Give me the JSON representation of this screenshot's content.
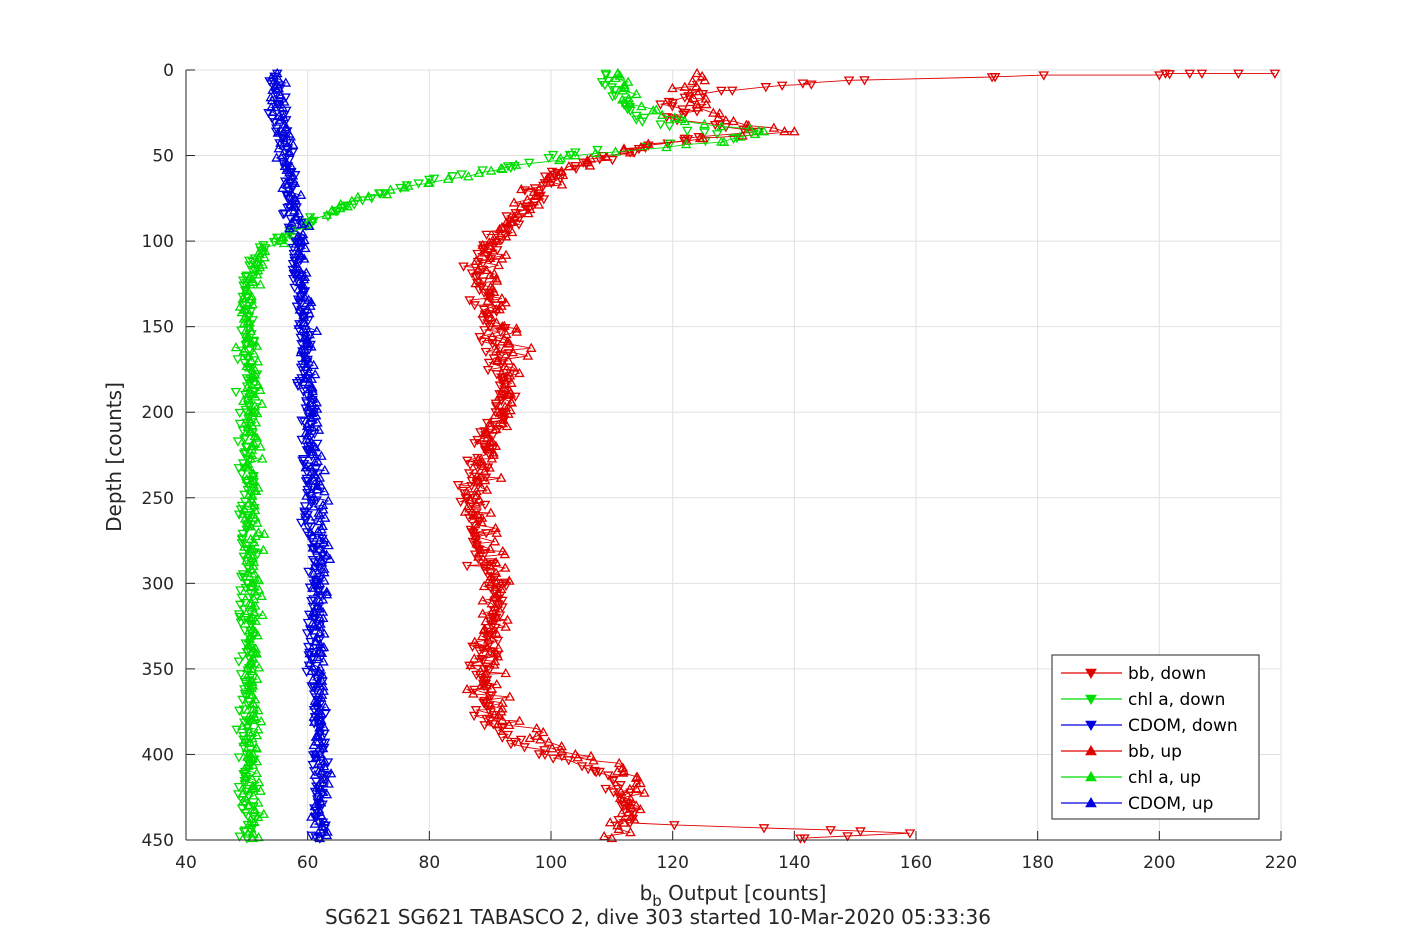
{
  "chart_data": {
    "type": "scatter",
    "xlabel_main": "b",
    "xlabel_sub": "b",
    "xlabel_rest": " Output [counts]",
    "ylabel": "Depth [counts]",
    "caption": "SG621 SG621 TABASCO 2, dive 303 started 10-Mar-2020 05:33:36",
    "xlim": [
      40,
      220
    ],
    "ylim": [
      0,
      450
    ],
    "y_reversed": true,
    "grid": true,
    "legend_position": "bottom-right",
    "x_ticks": [
      40,
      60,
      80,
      100,
      120,
      140,
      160,
      180,
      200,
      220
    ],
    "y_ticks": [
      0,
      50,
      100,
      150,
      200,
      250,
      300,
      350,
      400,
      450
    ],
    "series": [
      {
        "name": "bb, down",
        "color": "#e00000",
        "marker": "down",
        "line": true,
        "profile": [
          [
            2,
            219
          ],
          [
            2,
            213
          ],
          [
            2,
            207
          ],
          [
            2,
            205
          ],
          [
            2,
            201
          ],
          [
            3,
            200
          ],
          [
            3,
            181
          ],
          [
            4,
            173
          ],
          [
            6,
            149
          ],
          [
            9,
            138
          ],
          [
            12,
            128
          ],
          [
            16,
            122
          ],
          [
            20,
            118
          ],
          [
            24,
            124
          ],
          [
            28,
            120
          ],
          [
            32,
            127
          ],
          [
            36,
            134
          ],
          [
            40,
            122
          ],
          [
            44,
            116
          ],
          [
            48,
            113
          ],
          [
            52,
            108
          ],
          [
            56,
            104
          ],
          [
            60,
            101
          ],
          [
            66,
            99
          ],
          [
            72,
            98
          ],
          [
            80,
            96
          ],
          [
            88,
            94
          ],
          [
            96,
            91
          ],
          [
            104,
            89
          ],
          [
            112,
            88
          ],
          [
            120,
            88
          ],
          [
            130,
            89
          ],
          [
            140,
            89
          ],
          [
            150,
            90
          ],
          [
            160,
            91
          ],
          [
            170,
            92
          ],
          [
            180,
            92
          ],
          [
            190,
            92
          ],
          [
            200,
            92
          ],
          [
            210,
            90
          ],
          [
            220,
            89
          ],
          [
            230,
            88
          ],
          [
            240,
            87
          ],
          [
            250,
            86
          ],
          [
            260,
            87
          ],
          [
            270,
            87
          ],
          [
            280,
            88
          ],
          [
            290,
            89
          ],
          [
            300,
            91
          ],
          [
            310,
            92
          ],
          [
            320,
            91
          ],
          [
            330,
            90
          ],
          [
            340,
            90
          ],
          [
            350,
            89
          ],
          [
            360,
            89
          ],
          [
            370,
            89
          ],
          [
            380,
            90
          ],
          [
            390,
            92
          ],
          [
            400,
            99
          ],
          [
            410,
            108
          ],
          [
            420,
            111
          ],
          [
            430,
            112
          ],
          [
            440,
            113
          ],
          [
            446,
            159
          ],
          [
            449,
            141
          ]
        ],
        "scatter": 2.0
      },
      {
        "name": "chl a, down",
        "color": "#00dd00",
        "marker": "down",
        "line": false,
        "profile": [
          [
            2,
            109
          ],
          [
            10,
            110
          ],
          [
            20,
            112
          ],
          [
            30,
            115
          ],
          [
            40,
            130
          ],
          [
            48,
            104
          ],
          [
            56,
            94
          ],
          [
            64,
            80
          ],
          [
            72,
            72
          ],
          [
            80,
            66
          ],
          [
            88,
            61
          ],
          [
            96,
            57
          ],
          [
            104,
            53
          ],
          [
            112,
            51
          ],
          [
            120,
            50
          ],
          [
            140,
            50
          ],
          [
            160,
            50
          ],
          [
            180,
            50
          ],
          [
            200,
            50
          ],
          [
            220,
            50
          ],
          [
            240,
            50
          ],
          [
            260,
            50
          ],
          [
            280,
            50
          ],
          [
            300,
            50
          ],
          [
            320,
            50
          ],
          [
            340,
            50
          ],
          [
            360,
            50
          ],
          [
            380,
            50
          ],
          [
            400,
            50
          ],
          [
            420,
            50
          ],
          [
            449,
            50
          ]
        ],
        "scatter": 1.2
      },
      {
        "name": "CDOM, down",
        "color": "#0000dd",
        "marker": "down",
        "line": false,
        "profile": [
          [
            2,
            55
          ],
          [
            20,
            55
          ],
          [
            40,
            56
          ],
          [
            60,
            57
          ],
          [
            80,
            57
          ],
          [
            100,
            58
          ],
          [
            120,
            58
          ],
          [
            140,
            59
          ],
          [
            160,
            59
          ],
          [
            180,
            59
          ],
          [
            200,
            60
          ],
          [
            220,
            60
          ],
          [
            240,
            60
          ],
          [
            260,
            60
          ],
          [
            280,
            61
          ],
          [
            300,
            61
          ],
          [
            320,
            61
          ],
          [
            340,
            61
          ],
          [
            360,
            61
          ],
          [
            380,
            62
          ],
          [
            400,
            62
          ],
          [
            420,
            62
          ],
          [
            449,
            62
          ]
        ],
        "scatter": 1.2
      },
      {
        "name": "bb, up",
        "color": "#e00000",
        "marker": "up",
        "line": true,
        "profile": [
          [
            2,
            124
          ],
          [
            10,
            122
          ],
          [
            20,
            124
          ],
          [
            30,
            130
          ],
          [
            36,
            140
          ],
          [
            40,
            125
          ],
          [
            46,
            112
          ],
          [
            54,
            106
          ],
          [
            62,
            100
          ],
          [
            70,
            98
          ],
          [
            80,
            95
          ],
          [
            90,
            93
          ],
          [
            100,
            91
          ],
          [
            110,
            90
          ],
          [
            120,
            90
          ],
          [
            130,
            90
          ],
          [
            140,
            91
          ],
          [
            150,
            92
          ],
          [
            160,
            93
          ],
          [
            170,
            93
          ],
          [
            180,
            93
          ],
          [
            190,
            93
          ],
          [
            200,
            92
          ],
          [
            210,
            91
          ],
          [
            220,
            90
          ],
          [
            240,
            88
          ],
          [
            260,
            88
          ],
          [
            280,
            90
          ],
          [
            300,
            91
          ],
          [
            320,
            91
          ],
          [
            340,
            90
          ],
          [
            360,
            89
          ],
          [
            380,
            92
          ],
          [
            400,
            104
          ],
          [
            410,
            112
          ],
          [
            420,
            114
          ],
          [
            430,
            114
          ],
          [
            440,
            112
          ],
          [
            449,
            110
          ]
        ],
        "scatter": 2.5
      },
      {
        "name": "chl a, up",
        "color": "#00dd00",
        "marker": "up",
        "line": true,
        "profile": [
          [
            2,
            111
          ],
          [
            10,
            112
          ],
          [
            20,
            113
          ],
          [
            30,
            122
          ],
          [
            36,
            135
          ],
          [
            42,
            128
          ],
          [
            50,
            104
          ],
          [
            58,
            92
          ],
          [
            66,
            80
          ],
          [
            74,
            70
          ],
          [
            82,
            64
          ],
          [
            90,
            60
          ],
          [
            98,
            56
          ],
          [
            106,
            53
          ],
          [
            114,
            52
          ],
          [
            124,
            51
          ],
          [
            140,
            50
          ],
          [
            160,
            50
          ],
          [
            180,
            51
          ],
          [
            200,
            51
          ],
          [
            220,
            51
          ],
          [
            240,
            51
          ],
          [
            260,
            51
          ],
          [
            280,
            51
          ],
          [
            300,
            51
          ],
          [
            320,
            51
          ],
          [
            340,
            51
          ],
          [
            360,
            51
          ],
          [
            380,
            51
          ],
          [
            400,
            51
          ],
          [
            420,
            51
          ],
          [
            449,
            51
          ]
        ],
        "scatter": 1.3
      },
      {
        "name": "CDOM, up",
        "color": "#0000dd",
        "marker": "up",
        "line": true,
        "profile": [
          [
            2,
            55
          ],
          [
            20,
            55
          ],
          [
            40,
            56
          ],
          [
            60,
            57
          ],
          [
            80,
            58
          ],
          [
            100,
            59
          ],
          [
            120,
            59
          ],
          [
            140,
            60
          ],
          [
            160,
            60
          ],
          [
            180,
            60
          ],
          [
            200,
            61
          ],
          [
            220,
            61
          ],
          [
            240,
            61
          ],
          [
            260,
            62
          ],
          [
            280,
            62
          ],
          [
            300,
            62
          ],
          [
            320,
            62
          ],
          [
            340,
            62
          ],
          [
            360,
            62
          ],
          [
            380,
            62
          ],
          [
            400,
            62
          ],
          [
            420,
            62
          ],
          [
            449,
            62
          ]
        ],
        "scatter": 1.3
      }
    ]
  }
}
